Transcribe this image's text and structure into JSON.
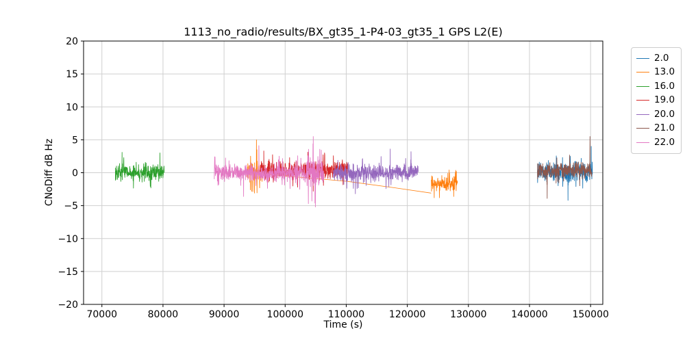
{
  "chart_data": {
    "type": "line",
    "title": "1113_no_radio/results/BX_gt35_1-P4-03_gt35_1 GPS L2(E)",
    "xlabel": "Time (s)",
    "ylabel": "CNoDiff dB Hz",
    "xlim": [
      67000,
      152000
    ],
    "ylim": [
      -20,
      20
    ],
    "xticks": [
      70000,
      80000,
      90000,
      100000,
      110000,
      120000,
      130000,
      140000,
      150000
    ],
    "yticks": [
      -20,
      -15,
      -10,
      -5,
      0,
      5,
      10,
      15,
      20
    ],
    "grid": true,
    "legend_position": "outside upper right",
    "series": [
      {
        "name": "2.0",
        "color": "#1f77b4",
        "z": 1,
        "segments": [
          {
            "kind": "noise",
            "x_start": 141300,
            "x_end": 150300,
            "mean": 0.1,
            "amplitude": 1.7,
            "spikes": [
              [
                146300,
                -4.2
              ],
              [
                150100,
                4.0
              ]
            ]
          }
        ]
      },
      {
        "name": "13.0",
        "color": "#ff7f0e",
        "z": 2,
        "segments": [
          {
            "kind": "noise",
            "x_start": 93800,
            "x_end": 96300,
            "mean": 0.3,
            "amplitude": 2.0,
            "spikes": [
              [
                95300,
                5.0
              ],
              [
                94300,
                -2.6
              ]
            ]
          },
          {
            "kind": "line",
            "points": [
              [
                96300,
                -0.2
              ],
              [
                110000,
                -1.3
              ],
              [
                118000,
                -2.3
              ],
              [
                123900,
                -3.1
              ]
            ]
          },
          {
            "kind": "noise",
            "x_start": 123900,
            "x_end": 128200,
            "mean": -1.7,
            "amplitude": 1.3,
            "spikes": [
              [
                124400,
                -3.8
              ],
              [
                127600,
                -3.6
              ]
            ]
          }
        ]
      },
      {
        "name": "16.0",
        "color": "#2ca02c",
        "z": 3,
        "segments": [
          {
            "kind": "noise",
            "x_start": 72200,
            "x_end": 80200,
            "mean": 0.0,
            "amplitude": 1.5,
            "spikes": [
              [
                73300,
                3.1
              ],
              [
                79500,
                3.0
              ]
            ]
          }
        ]
      },
      {
        "name": "19.0",
        "color": "#d62728",
        "z": 4,
        "segments": [
          {
            "kind": "noise",
            "x_start": 95900,
            "x_end": 110200,
            "mean": 0.4,
            "amplitude": 1.6,
            "spikes": [
              [
                96500,
                3.3
              ],
              [
                104600,
                -2.8
              ]
            ]
          }
        ]
      },
      {
        "name": "20.0",
        "color": "#9467bd",
        "z": 6,
        "segments": [
          {
            "kind": "noise",
            "x_start": 107900,
            "x_end": 121800,
            "mean": 0.0,
            "amplitude": 1.5,
            "spikes": [
              [
                111500,
                -3.2
              ],
              [
                117200,
                3.6
              ],
              [
                120600,
                3.2
              ]
            ]
          }
        ]
      },
      {
        "name": "21.0",
        "color": "#8c564b",
        "z": 7,
        "segments": [
          {
            "kind": "noise",
            "x_start": 141300,
            "x_end": 150200,
            "mean": 0.3,
            "amplitude": 1.5,
            "spikes": [
              [
                149900,
                5.5
              ],
              [
                142900,
                -3.9
              ]
            ]
          }
        ]
      },
      {
        "name": "22.0",
        "color": "#e377c2",
        "z": 5,
        "segments": [
          {
            "kind": "noise",
            "x_start": 88400,
            "x_end": 103500,
            "mean": 0.0,
            "amplitude": 1.6,
            "spikes": [
              [
                93200,
                -3.6
              ],
              [
                95700,
                4.1
              ]
            ]
          },
          {
            "kind": "noise",
            "x_start": 103500,
            "x_end": 106300,
            "mean": 0.0,
            "amplitude": 2.8,
            "spikes": [
              [
                104600,
                5.5
              ],
              [
                104950,
                -5.2
              ]
            ]
          }
        ]
      }
    ]
  }
}
